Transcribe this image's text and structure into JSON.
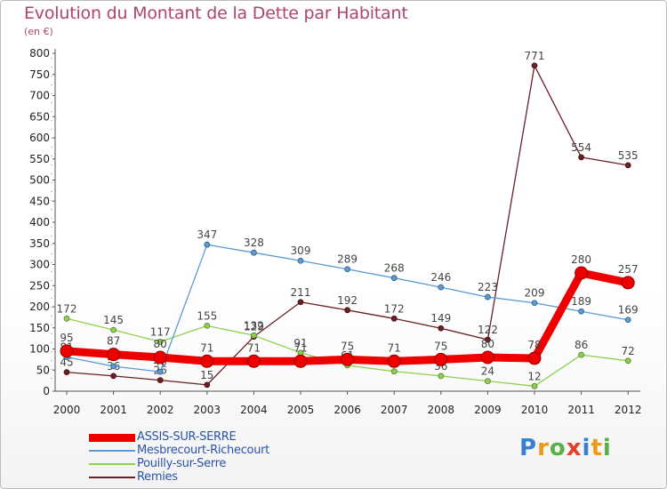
{
  "header": {
    "title": "Evolution du Montant de la Dette par Habitant",
    "subtitle": "(en €)"
  },
  "logo": {
    "letters": [
      "P",
      "r",
      "o",
      "x",
      "i",
      "t",
      "i"
    ],
    "colors": [
      "#3a7fd0",
      "#e89b1c",
      "#59b04a",
      "#e5402a",
      "#3a7fd0",
      "#e89b1c",
      "#59b04a"
    ]
  },
  "chart_data": {
    "type": "line",
    "title": "Evolution du Montant de la Dette par Habitant",
    "ylabel": "(en €)",
    "xlabel": "",
    "ylim": [
      0,
      800
    ],
    "yticks": [
      0,
      50,
      100,
      150,
      200,
      250,
      300,
      350,
      400,
      450,
      500,
      550,
      600,
      650,
      700,
      750,
      800
    ],
    "grid": false,
    "legend_position": "bottom-left",
    "categories": [
      "2000",
      "2001",
      "2002",
      "2003",
      "2004",
      "2005",
      "2006",
      "2007",
      "2008",
      "2009",
      "2010",
      "2011",
      "2012"
    ],
    "series": [
      {
        "name": "ASSIS-SUR-SERRE",
        "color": "#ee0000",
        "emphasis": true,
        "values": [
          95,
          87,
          80,
          71,
          71,
          71,
          75,
          71,
          75,
          80,
          78,
          280,
          257
        ]
      },
      {
        "name": "Mesbrecourt-Richecourt",
        "color": "#5b9bd5",
        "emphasis": false,
        "values": [
          81,
          59,
          46,
          347,
          328,
          309,
          289,
          268,
          246,
          223,
          209,
          189,
          169
        ]
      },
      {
        "name": "Pouilly-sur-Serre",
        "color": "#8fd14f",
        "emphasis": false,
        "values": [
          172,
          145,
          117,
          155,
          132,
          91,
          61,
          47,
          36,
          24,
          12,
          86,
          72
        ]
      },
      {
        "name": "Remies",
        "color": "#6b1f24",
        "emphasis": false,
        "values": [
          45,
          36,
          26,
          15,
          129,
          211,
          192,
          172,
          149,
          122,
          771,
          554,
          535
        ]
      }
    ],
    "draw_order": [
      3,
      2,
      1,
      0
    ]
  }
}
